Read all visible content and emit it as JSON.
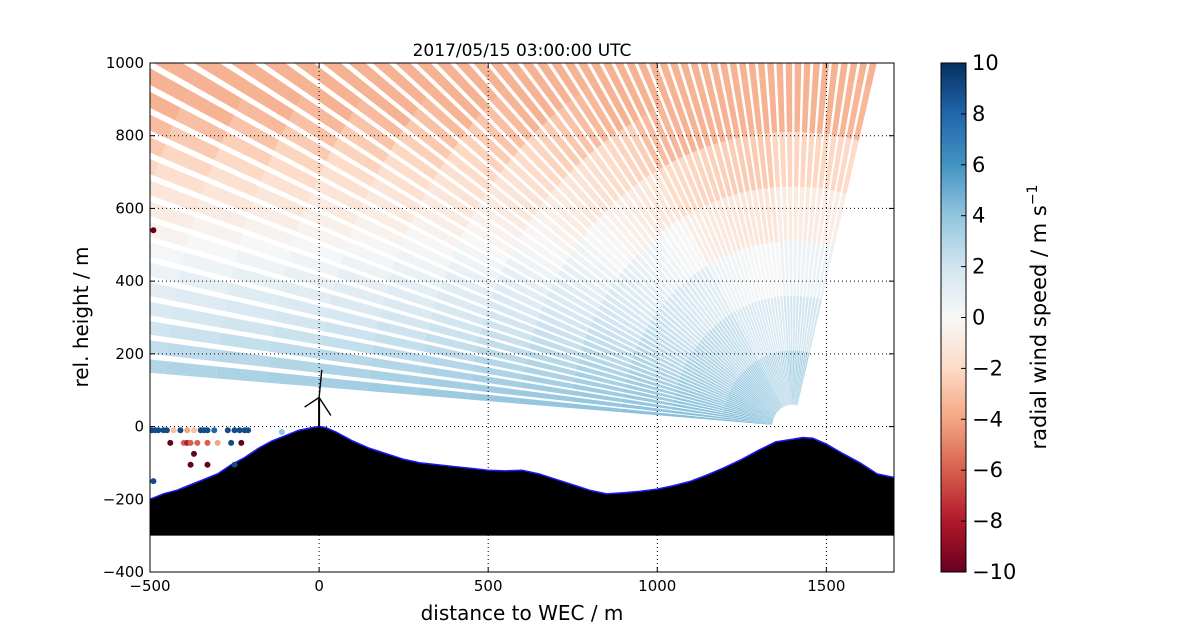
{
  "chart_data": {
    "type": "heatmap",
    "title": "2017/05/15 03:00:00 UTC",
    "xlabel": "distance to WEC / m",
    "ylabel": "rel. height / m",
    "xlim": [
      -500,
      1700
    ],
    "ylim": [
      -400,
      1000
    ],
    "xticks": [
      -500,
      0,
      500,
      1000,
      1500
    ],
    "yticks": [
      -400,
      -200,
      0,
      200,
      400,
      600,
      800,
      1000
    ],
    "xtick_labels": [
      "−500",
      "0",
      "500",
      "1000",
      "1500"
    ],
    "ytick_labels": [
      "−400",
      "−200",
      "0",
      "200",
      "400",
      "600",
      "800",
      "1000"
    ],
    "grid": true,
    "colorbar": {
      "label": "radial wind speed / m s",
      "label_superscript": "−1",
      "vmin": -10,
      "vmax": 10,
      "ticks": [
        -10,
        -8,
        -6,
        -4,
        -2,
        0,
        2,
        4,
        6,
        8,
        10
      ],
      "tick_labels": [
        "−10",
        "−8",
        "−6",
        "−4",
        "−2",
        "0",
        "2",
        "4",
        "6",
        "8",
        "10"
      ],
      "colormap": [
        "#67001f",
        "#b2182b",
        "#d6604d",
        "#f4a582",
        "#fddbc7",
        "#f7f7f7",
        "#d1e5f0",
        "#92c5de",
        "#4393c3",
        "#2166ac",
        "#053061"
      ]
    },
    "lidar_scans": [
      {
        "origin": [
          1400,
          0
        ],
        "description": "RHI scan fan, positive values near ground toward WEC, negative aloft"
      }
    ],
    "terrain": [
      [
        -500,
        -200
      ],
      [
        -460,
        -185
      ],
      [
        -420,
        -175
      ],
      [
        -380,
        -160
      ],
      [
        -340,
        -145
      ],
      [
        -300,
        -130
      ],
      [
        -260,
        -105
      ],
      [
        -220,
        -85
      ],
      [
        -180,
        -60
      ],
      [
        -140,
        -40
      ],
      [
        -100,
        -25
      ],
      [
        -60,
        -10
      ],
      [
        -20,
        -3
      ],
      [
        0,
        0
      ],
      [
        20,
        -3
      ],
      [
        50,
        -15
      ],
      [
        100,
        -40
      ],
      [
        150,
        -60
      ],
      [
        200,
        -75
      ],
      [
        250,
        -90
      ],
      [
        300,
        -100
      ],
      [
        350,
        -105
      ],
      [
        400,
        -110
      ],
      [
        450,
        -115
      ],
      [
        500,
        -120
      ],
      [
        550,
        -122
      ],
      [
        600,
        -120
      ],
      [
        650,
        -130
      ],
      [
        700,
        -145
      ],
      [
        750,
        -160
      ],
      [
        800,
        -175
      ],
      [
        850,
        -185
      ],
      [
        900,
        -182
      ],
      [
        950,
        -178
      ],
      [
        1000,
        -172
      ],
      [
        1050,
        -162
      ],
      [
        1100,
        -150
      ],
      [
        1150,
        -132
      ],
      [
        1200,
        -112
      ],
      [
        1250,
        -90
      ],
      [
        1300,
        -65
      ],
      [
        1350,
        -42
      ],
      [
        1400,
        -35
      ],
      [
        1430,
        -30
      ],
      [
        1460,
        -32
      ],
      [
        1500,
        -48
      ],
      [
        1550,
        -75
      ],
      [
        1600,
        -100
      ],
      [
        1650,
        -130
      ],
      [
        1700,
        -140
      ]
    ],
    "terrain_bottom": -300,
    "turbine": {
      "x": 0,
      "hub_height": 80,
      "rotor_radius": 40
    },
    "points": [
      {
        "x": -490,
        "y": 540,
        "v": -10
      },
      {
        "x": -490,
        "y": -150,
        "v": 9
      },
      {
        "x": -495,
        "y": -10,
        "v": 9
      },
      {
        "x": -485,
        "y": -10,
        "v": 9
      },
      {
        "x": -475,
        "y": -10,
        "v": 9
      },
      {
        "x": -460,
        "y": -10,
        "v": 9
      },
      {
        "x": -450,
        "y": -10,
        "v": 9
      },
      {
        "x": -430,
        "y": -10,
        "v": -3
      },
      {
        "x": -410,
        "y": -10,
        "v": 9
      },
      {
        "x": -390,
        "y": -10,
        "v": -4
      },
      {
        "x": -370,
        "y": -10,
        "v": -3
      },
      {
        "x": -350,
        "y": -10,
        "v": 9
      },
      {
        "x": -340,
        "y": -10,
        "v": 9
      },
      {
        "x": -330,
        "y": -10,
        "v": 9
      },
      {
        "x": -310,
        "y": -10,
        "v": 8
      },
      {
        "x": -270,
        "y": -10,
        "v": 9
      },
      {
        "x": -250,
        "y": -10,
        "v": 9
      },
      {
        "x": -235,
        "y": -10,
        "v": 9
      },
      {
        "x": -220,
        "y": -10,
        "v": 9
      },
      {
        "x": -210,
        "y": -10,
        "v": 9
      },
      {
        "x": -440,
        "y": -45,
        "v": -10
      },
      {
        "x": -400,
        "y": -45,
        "v": -6
      },
      {
        "x": -390,
        "y": -45,
        "v": -8
      },
      {
        "x": -380,
        "y": -45,
        "v": -6
      },
      {
        "x": -360,
        "y": -45,
        "v": -6
      },
      {
        "x": -330,
        "y": -45,
        "v": -6
      },
      {
        "x": -300,
        "y": -45,
        "v": -4
      },
      {
        "x": -260,
        "y": -45,
        "v": 9
      },
      {
        "x": -230,
        "y": -45,
        "v": -10
      },
      {
        "x": -370,
        "y": -75,
        "v": -10
      },
      {
        "x": -380,
        "y": -105,
        "v": -10
      },
      {
        "x": -330,
        "y": -105,
        "v": -10
      },
      {
        "x": -250,
        "y": -105,
        "v": 9
      },
      {
        "x": -110,
        "y": -15,
        "v": 4
      }
    ]
  }
}
